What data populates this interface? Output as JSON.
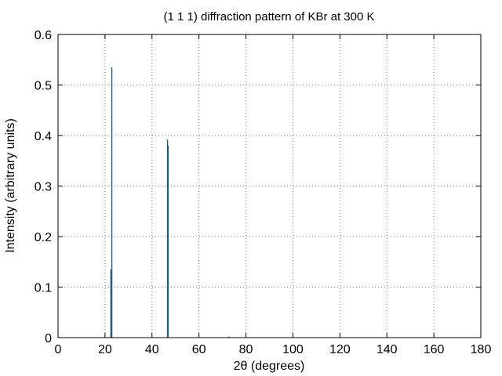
{
  "chart_data": {
    "type": "bar",
    "title": "(1 1 1) diffraction pattern of KBr at 300 K",
    "xlabel": "2θ (degrees)",
    "ylabel": "Intensity (arbitrary units)",
    "xlim": [
      0,
      180
    ],
    "ylim": [
      0,
      0.6
    ],
    "xticks": [
      0,
      20,
      40,
      60,
      80,
      100,
      120,
      140,
      160,
      180
    ],
    "yticks": [
      0,
      0.1,
      0.2,
      0.3,
      0.4,
      0.5,
      0.6
    ],
    "ytick_labels": [
      "0",
      "0.1",
      "0.2",
      "0.3",
      "0.4",
      "0.5",
      "0.6"
    ],
    "grid": true,
    "bar_color": "#1f5d80",
    "points": [
      {
        "x": 22.5,
        "y": 0.135
      },
      {
        "x": 22.9,
        "y": 0.535
      },
      {
        "x": 46.6,
        "y": 0.392
      },
      {
        "x": 46.9,
        "y": 0.38
      },
      {
        "x": 72.7,
        "y": 0.002
      }
    ]
  }
}
